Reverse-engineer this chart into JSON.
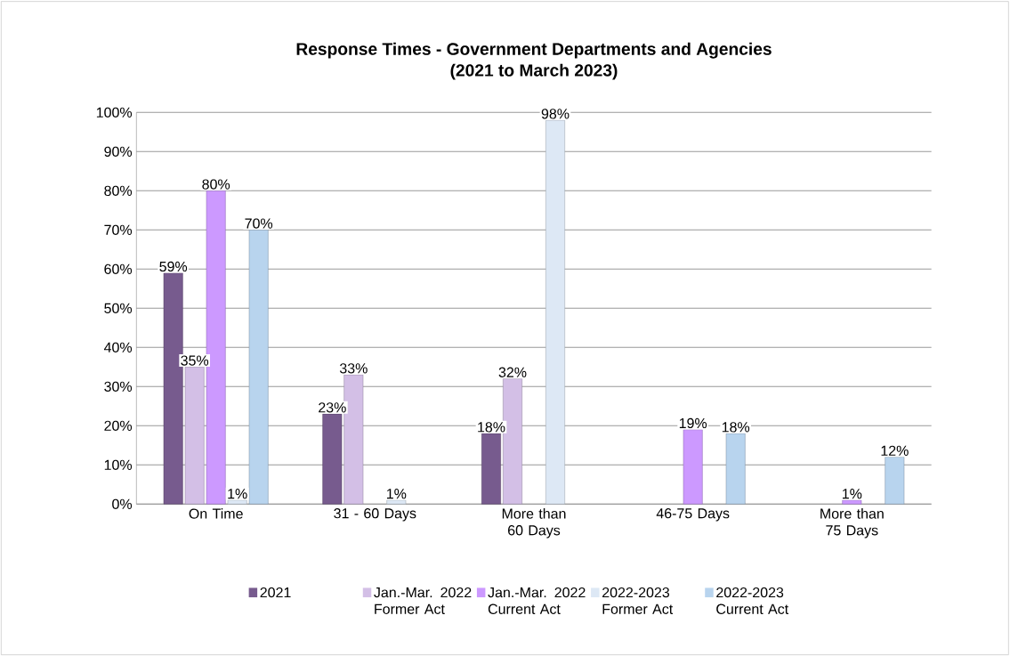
{
  "chart_data": {
    "type": "bar",
    "title": "Response Times - Government Departments and Agencies",
    "subtitle": "(2021 to March 2023)",
    "categories": [
      "On Time",
      "31 - 60 Days",
      "More than 60 Days",
      "46-75 Days",
      "More than 75 Days"
    ],
    "series": [
      {
        "name": "2021",
        "color": "#775b8e",
        "values": [
          59,
          23,
          18,
          null,
          null
        ],
        "value_labels": [
          "59%",
          "23%",
          "18%",
          null,
          null
        ]
      },
      {
        "name": "Jan.-Mar. 2022 Former Act",
        "color": "#d3bfe6",
        "values": [
          35,
          33,
          32,
          null,
          null
        ],
        "value_labels": [
          "35%",
          "33%",
          "32%",
          null,
          null
        ]
      },
      {
        "name": "Jan.-Mar. 2022 Current Act",
        "color": "#cc99ff",
        "values": [
          80,
          null,
          null,
          19,
          1
        ],
        "value_labels": [
          "80%",
          null,
          null,
          "19%",
          "1%"
        ]
      },
      {
        "name": "2022-2023 Former Act",
        "color": "#dde8f5",
        "values": [
          1,
          1,
          98,
          null,
          null
        ],
        "value_labels": [
          "1%",
          "1%",
          "98%",
          null,
          null
        ]
      },
      {
        "name": "2022-2023 Current Act",
        "color": "#b8d4ee",
        "values": [
          70,
          null,
          null,
          18,
          12
        ],
        "value_labels": [
          "70%",
          null,
          null,
          "18%",
          "12%"
        ]
      }
    ],
    "ylim": [
      0,
      100
    ],
    "yticks": [
      {
        "value": 0,
        "label": "0%"
      },
      {
        "value": 10,
        "label": "10%"
      },
      {
        "value": 20,
        "label": "20%"
      },
      {
        "value": 30,
        "label": "30%"
      },
      {
        "value": 40,
        "label": "40%"
      },
      {
        "value": 50,
        "label": "50%"
      },
      {
        "value": 60,
        "label": "60%"
      },
      {
        "value": 70,
        "label": "70%"
      },
      {
        "value": 80,
        "label": "80%"
      },
      {
        "value": 90,
        "label": "90%"
      },
      {
        "value": 100,
        "label": "100%"
      }
    ],
    "grid": "y",
    "legend": "bottom"
  }
}
